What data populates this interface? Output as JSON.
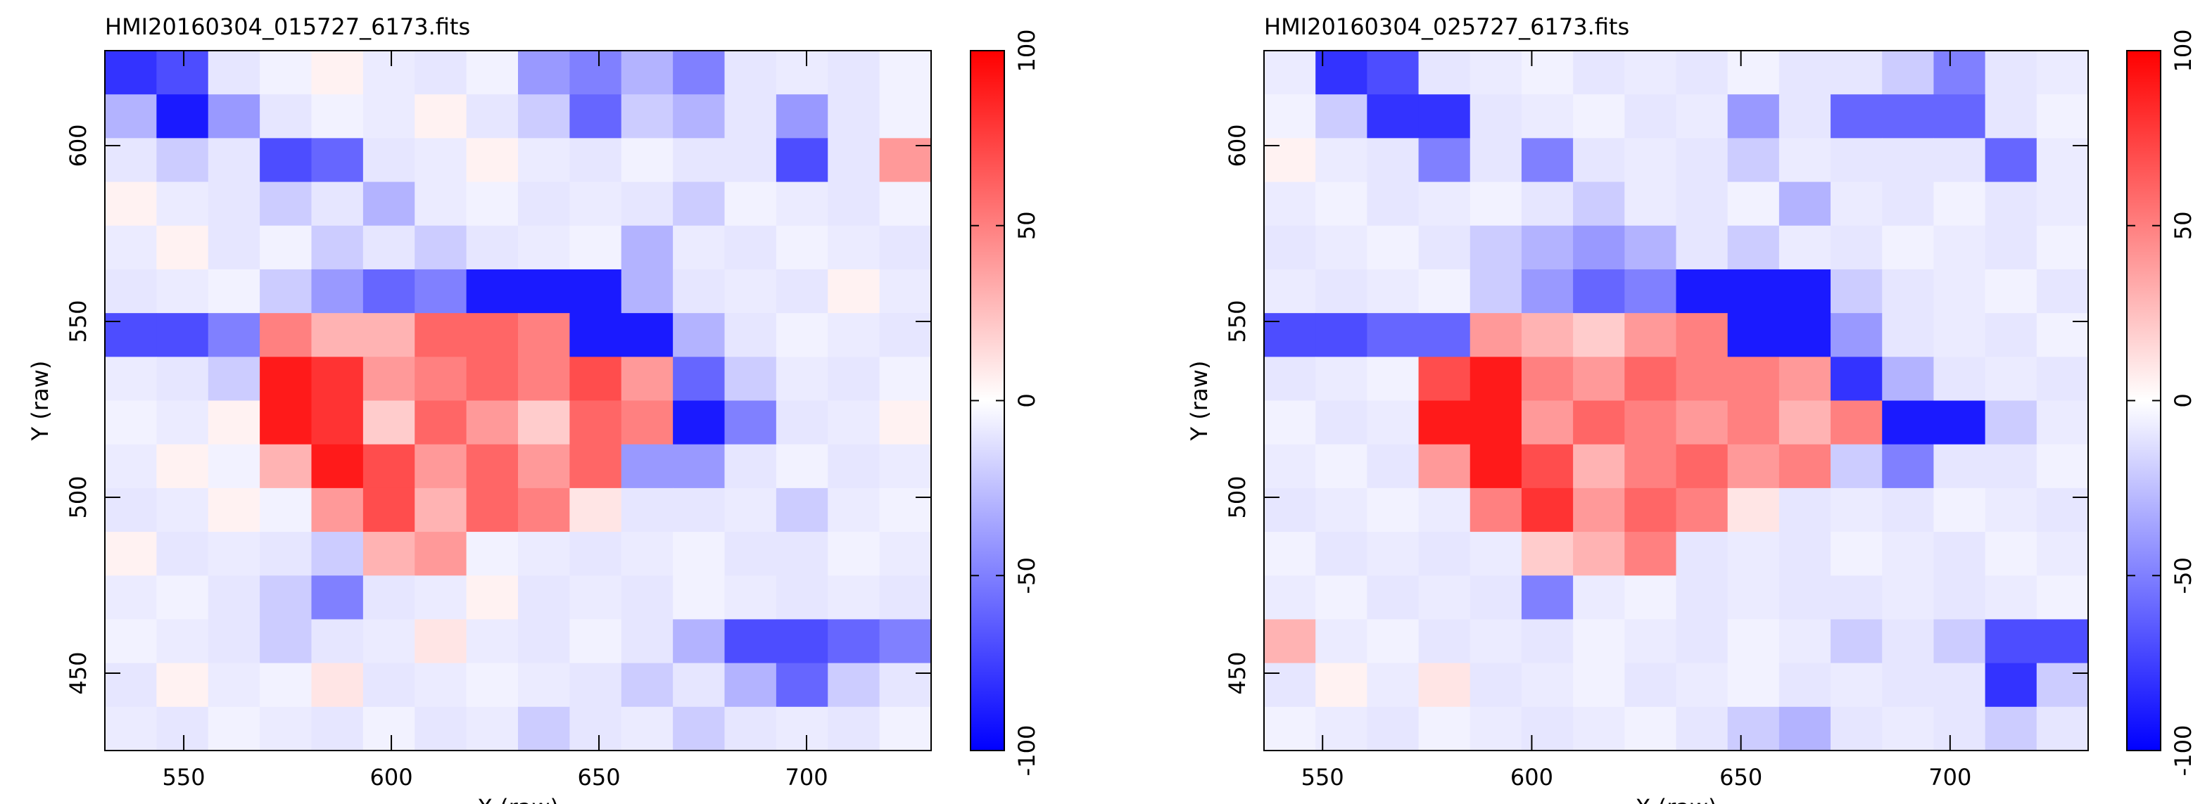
{
  "chart_data": [
    {
      "type": "heatmap",
      "title": "HMI20160304_015727_6173.fits",
      "xlabel": "X (raw)",
      "ylabel": "Y (raw)",
      "xlim": [
        531,
        730
      ],
      "ylim": [
        428,
        627
      ],
      "xticks": [
        550,
        600,
        650,
        700
      ],
      "yticks": [
        450,
        500,
        550,
        600
      ],
      "clim": [
        -100,
        100
      ],
      "cticks": [
        -100,
        -50,
        0,
        50,
        100
      ],
      "colors": [
        "#0000ff",
        "#ffffff",
        "#ff0000"
      ],
      "z": [
        [
          -80,
          -70,
          -10,
          -5,
          5,
          -8,
          -10,
          -5,
          -40,
          -50,
          -30,
          -50,
          -10,
          -8,
          -10,
          -5
        ],
        [
          -30,
          -90,
          -40,
          -10,
          -5,
          -8,
          5,
          -10,
          -20,
          -60,
          -20,
          -30,
          -10,
          -40,
          -10,
          -5
        ],
        [
          -10,
          -20,
          -10,
          -70,
          -60,
          -10,
          -8,
          5,
          -8,
          -10,
          -5,
          -10,
          -10,
          -70,
          -10,
          40
        ],
        [
          5,
          -8,
          -10,
          -20,
          -10,
          -30,
          -8,
          -5,
          -10,
          -8,
          -10,
          -20,
          -5,
          -8,
          -10,
          -5
        ],
        [
          -8,
          5,
          -10,
          -5,
          -20,
          -10,
          -20,
          -10,
          -8,
          -5,
          -30,
          -8,
          -10,
          -5,
          -8,
          -10
        ],
        [
          -10,
          -8,
          -5,
          -20,
          -40,
          -60,
          -50,
          -90,
          -90,
          -90,
          -30,
          -10,
          -8,
          -10,
          5,
          -8
        ],
        [
          -70,
          -70,
          -50,
          50,
          30,
          30,
          60,
          60,
          50,
          -90,
          -90,
          -30,
          -10,
          -5,
          -8,
          -10
        ],
        [
          -8,
          -10,
          -20,
          90,
          80,
          40,
          50,
          60,
          50,
          70,
          40,
          -60,
          -20,
          -8,
          -10,
          -5
        ],
        [
          -5,
          -8,
          5,
          90,
          80,
          20,
          60,
          40,
          20,
          60,
          50,
          -90,
          -50,
          -10,
          -8,
          5
        ],
        [
          -8,
          5,
          -5,
          30,
          90,
          70,
          40,
          60,
          40,
          60,
          -40,
          -40,
          -10,
          -5,
          -10,
          -8
        ],
        [
          -10,
          -8,
          5,
          -5,
          40,
          70,
          30,
          60,
          50,
          10,
          -10,
          -10,
          -8,
          -20,
          -8,
          -5
        ],
        [
          5,
          -10,
          -8,
          -10,
          -20,
          30,
          40,
          -5,
          -8,
          -10,
          -8,
          -5,
          -10,
          -10,
          -5,
          -8
        ],
        [
          -8,
          -5,
          -10,
          -20,
          -50,
          -10,
          -8,
          5,
          -10,
          -8,
          -10,
          -5,
          -8,
          -10,
          -8,
          -10
        ],
        [
          -5,
          -8,
          -10,
          -20,
          -10,
          -8,
          10,
          -8,
          -10,
          -5,
          -10,
          -30,
          -70,
          -70,
          -60,
          -50
        ],
        [
          -10,
          5,
          -8,
          -5,
          10,
          -10,
          -8,
          -5,
          -8,
          -10,
          -20,
          -10,
          -30,
          -60,
          -20,
          -10
        ],
        [
          -8,
          -10,
          -5,
          -8,
          -10,
          -5,
          -10,
          -8,
          -20,
          -10,
          -8,
          -20,
          -10,
          -8,
          -10,
          -5
        ]
      ]
    },
    {
      "type": "heatmap",
      "title": "HMI20160304_025727_6173.fits",
      "xlabel": "X (raw)",
      "ylabel": "Y (raw)",
      "xlim": [
        536,
        733
      ],
      "ylim": [
        428,
        627
      ],
      "xticks": [
        550,
        600,
        650,
        700
      ],
      "yticks": [
        450,
        500,
        550,
        600
      ],
      "clim": [
        -100,
        100
      ],
      "cticks": [
        -100,
        -50,
        0,
        50,
        100
      ],
      "colors": [
        "#0000ff",
        "#ffffff",
        "#ff0000"
      ],
      "z": [
        [
          -8,
          -80,
          -70,
          -10,
          -8,
          -5,
          -10,
          -8,
          -10,
          -5,
          -10,
          -10,
          -20,
          -50,
          -10,
          -8
        ],
        [
          -5,
          -20,
          -80,
          -80,
          -10,
          -8,
          -5,
          -10,
          -8,
          -40,
          -10,
          -60,
          -60,
          -60,
          -10,
          -5
        ],
        [
          5,
          -8,
          -10,
          -50,
          -10,
          -50,
          -10,
          -8,
          -10,
          -20,
          -8,
          -10,
          -10,
          -10,
          -60,
          -8
        ],
        [
          -8,
          -5,
          -10,
          -8,
          -5,
          -10,
          -20,
          -8,
          -10,
          -5,
          -30,
          -8,
          -10,
          -5,
          -10,
          -8
        ],
        [
          -10,
          -8,
          -5,
          -10,
          -20,
          -30,
          -40,
          -30,
          -10,
          -20,
          -8,
          -10,
          -5,
          -8,
          -10,
          -5
        ],
        [
          -8,
          -10,
          -8,
          -5,
          -20,
          -40,
          -60,
          -50,
          -90,
          -90,
          -90,
          -20,
          -10,
          -8,
          -5,
          -10
        ],
        [
          -70,
          -70,
          -60,
          -60,
          40,
          30,
          20,
          40,
          50,
          -90,
          -90,
          -40,
          -10,
          -8,
          -10,
          -5
        ],
        [
          -10,
          -8,
          -5,
          70,
          90,
          50,
          40,
          60,
          50,
          50,
          40,
          -80,
          -30,
          -10,
          -8,
          -10
        ],
        [
          -5,
          -10,
          -8,
          90,
          90,
          40,
          60,
          50,
          40,
          50,
          30,
          50,
          -90,
          -90,
          -20,
          -8
        ],
        [
          -8,
          -5,
          -10,
          40,
          90,
          70,
          30,
          50,
          60,
          40,
          50,
          -20,
          -50,
          -10,
          -10,
          -5
        ],
        [
          -10,
          -8,
          -5,
          -8,
          50,
          80,
          40,
          60,
          50,
          10,
          -10,
          -8,
          -10,
          -5,
          -8,
          -10
        ],
        [
          -5,
          -10,
          -8,
          -10,
          -8,
          20,
          30,
          50,
          -10,
          -8,
          -10,
          -5,
          -8,
          -10,
          -5,
          -8
        ],
        [
          -8,
          -5,
          -10,
          -8,
          -10,
          -50,
          -8,
          -5,
          -10,
          -8,
          -10,
          -10,
          -8,
          -10,
          -8,
          -5
        ],
        [
          30,
          -8,
          -5,
          -10,
          -8,
          -10,
          -5,
          -8,
          -10,
          -5,
          -8,
          -20,
          -10,
          -20,
          -70,
          -70
        ],
        [
          -10,
          5,
          -8,
          10,
          -10,
          -8,
          -5,
          -10,
          -8,
          -5,
          -10,
          -8,
          -10,
          -10,
          -80,
          -20
        ],
        [
          -5,
          -8,
          -10,
          -5,
          -8,
          -10,
          -8,
          -5,
          -10,
          -20,
          -30,
          -10,
          -8,
          -10,
          -20,
          -10
        ]
      ]
    }
  ]
}
